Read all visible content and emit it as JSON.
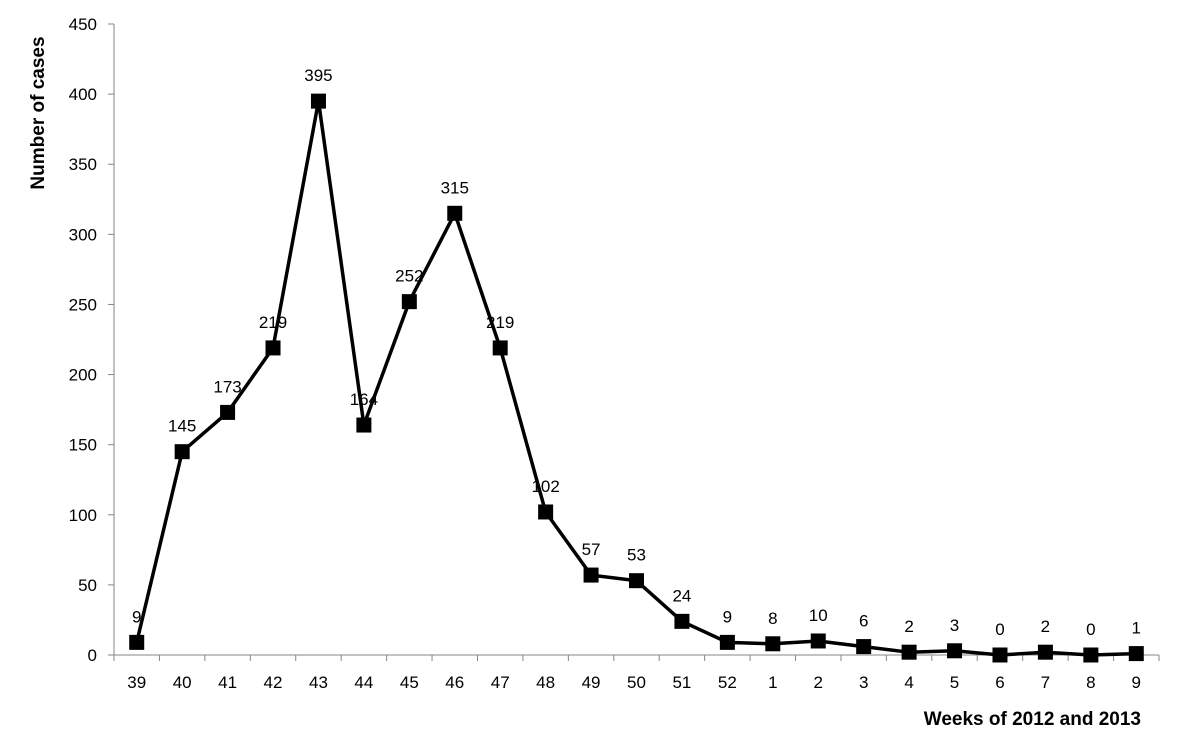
{
  "chart_data": {
    "type": "line",
    "title": "",
    "xlabel": "Weeks of 2012 and 2013",
    "ylabel": "Number of cases",
    "ylim": [
      0,
      450
    ],
    "yticks": [
      0,
      50,
      100,
      150,
      200,
      250,
      300,
      350,
      400,
      450
    ],
    "grid": false,
    "legend": "none",
    "categories": [
      "39",
      "40",
      "41",
      "42",
      "43",
      "44",
      "45",
      "46",
      "47",
      "48",
      "49",
      "50",
      "51",
      "52",
      "1",
      "2",
      "3",
      "4",
      "5",
      "6",
      "7",
      "8",
      "9"
    ],
    "values": [
      9,
      145,
      173,
      219,
      395,
      164,
      252,
      315,
      219,
      102,
      57,
      53,
      24,
      9,
      8,
      10,
      6,
      2,
      3,
      0,
      2,
      0,
      1
    ],
    "line_color": "#000000",
    "marker": "square"
  }
}
